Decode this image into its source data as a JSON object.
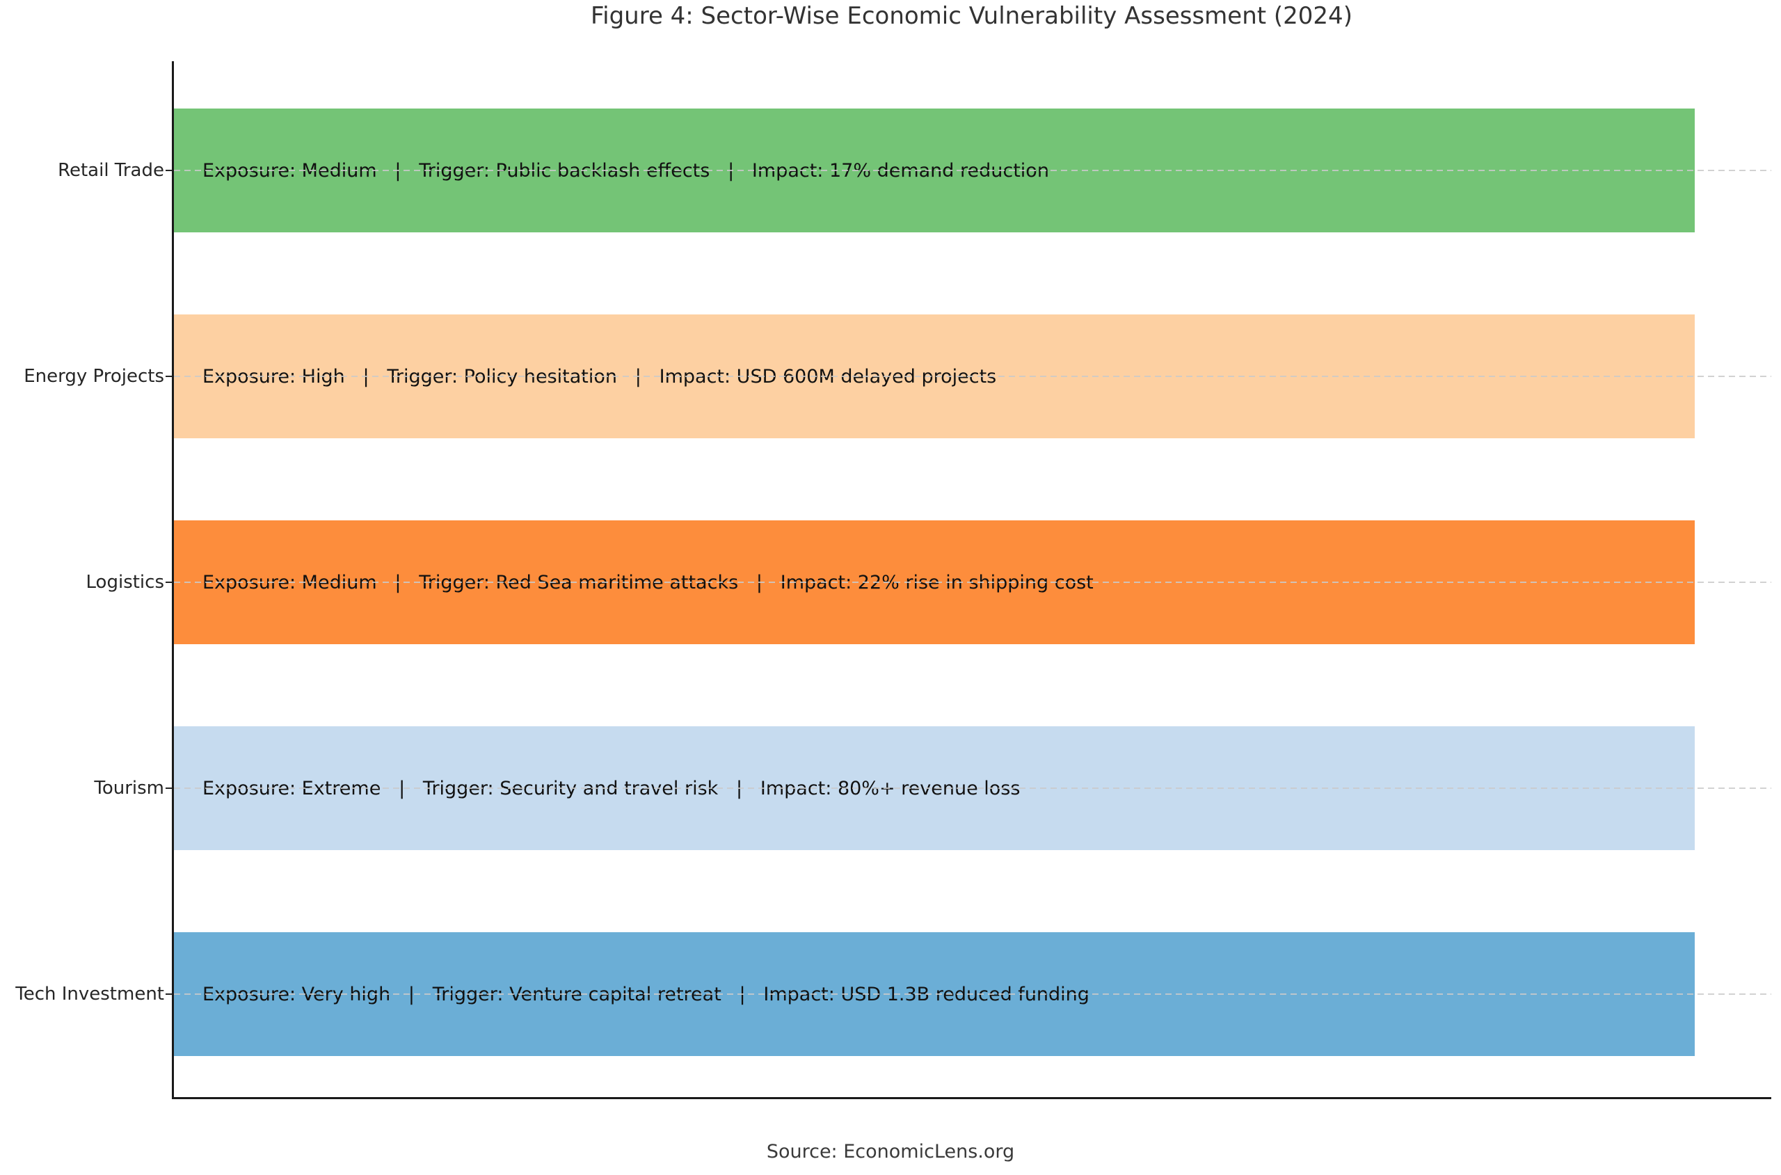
{
  "figure": {
    "title": "Figure 4: Sector-Wise Economic Vulnerability Assessment (2024)",
    "source": "Source: EconomicLens.org"
  },
  "chart_data": {
    "type": "bar",
    "orientation": "horizontal",
    "title": "Figure 4: Sector-Wise Economic Vulnerability Assessment (2024)",
    "categories": [
      "Retail Trade",
      "Energy Projects",
      "Logistics",
      "Tourism",
      "Tech Investment"
    ],
    "values": [
      1,
      1,
      1,
      1,
      1
    ],
    "xlim": [
      0,
      1.05
    ],
    "x_axis_ticks": "none",
    "grid": "horizontal dashed gridline at each category center, drawn over bars",
    "legend": "none",
    "bar_height_fraction": 0.6,
    "rows": [
      {
        "sector": "Retail Trade",
        "exposure": "Medium",
        "trigger": "Public backlash effects",
        "impact": "17% demand reduction",
        "label": "Exposure: Medium   |   Trigger: Public backlash effects   |   Impact: 17% demand reduction",
        "color": "#74c476"
      },
      {
        "sector": "Energy Projects",
        "exposure": "High",
        "trigger": "Policy hesitation",
        "impact": "USD 600M delayed projects",
        "label": "Exposure: High   |   Trigger: Policy hesitation   |   Impact: USD 600M delayed projects",
        "color": "#fdd0a2"
      },
      {
        "sector": "Logistics",
        "exposure": "Medium",
        "trigger": "Red Sea maritime attacks",
        "impact": "22% rise in shipping cost",
        "label": "Exposure: Medium   |   Trigger: Red Sea maritime attacks   |   Impact: 22% rise in shipping cost",
        "color": "#fd8d3c"
      },
      {
        "sector": "Tourism",
        "exposure": "Extreme",
        "trigger": "Security and travel risk",
        "impact": "80%+ revenue loss",
        "label": "Exposure: Extreme   |   Trigger: Security and travel risk   |   Impact: 80%+ revenue loss",
        "color": "#c6dbef"
      },
      {
        "sector": "Tech Investment",
        "exposure": "Very high",
        "trigger": "Venture capital retreat",
        "impact": "USD 1.3B reduced funding",
        "label": "Exposure: Very high   |   Trigger: Venture capital retreat   |   Impact: USD 1.3B reduced funding",
        "color": "#6baed6"
      }
    ],
    "colors": {
      "grid": "#cccccc",
      "spine": "#1a1a1a",
      "bar_text": "#111111",
      "axis_label": "#262626",
      "title": "#333333",
      "source": "#3a3a3a",
      "background": "#ffffff"
    }
  }
}
